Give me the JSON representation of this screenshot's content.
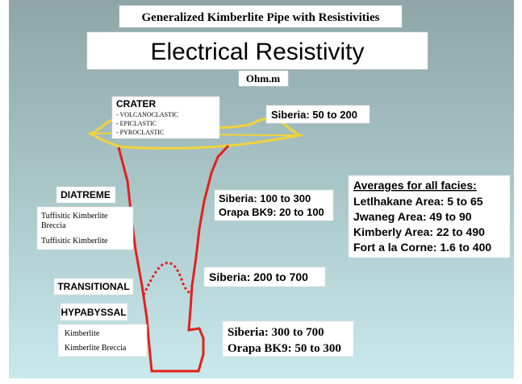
{
  "header": {
    "title": "Generalized Kimberlite Pipe with Resistivities",
    "heading": "Electrical Resistivity",
    "unit": "Ohm.m"
  },
  "crater": {
    "label": "CRATER",
    "items": [
      "- VOLCANOCLASTIC",
      "- EPICLASTIC",
      "- PYROCLASTIC"
    ],
    "resistivity": "Siberia: 50 to 200"
  },
  "diatreme": {
    "label": "DIATREME",
    "items": [
      "Tuffisitic Kimberlite",
      "Breccia",
      "Tuffisitic Kimberlite"
    ],
    "resistivity": [
      "Siberia: 100 to 300",
      "Orapa BK9: 20 to 100"
    ]
  },
  "transitional": {
    "label": "TRANSITIONAL",
    "resistivity": "Siberia: 200 to 700"
  },
  "hypabyssal": {
    "label": "HYPABYSSAL",
    "items": [
      "Kimberlite",
      "Kimberlite Breccia"
    ],
    "resistivity": [
      "Siberia: 300 to 700",
      "Orapa BK9: 50 to 300"
    ]
  },
  "averages": {
    "title": "Averages for all facies:",
    "rows": [
      "Letlhakane Area: 5 to 65",
      "Jwaneg Area: 49 to 90",
      "Kimberly Area: 22 to 490",
      "Fort a la Corne: 1.6 to 400"
    ]
  }
}
